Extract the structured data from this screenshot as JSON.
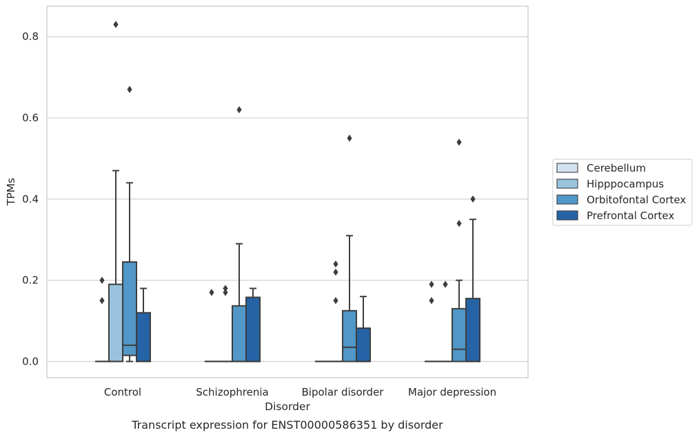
{
  "chart_data": {
    "type": "boxplot",
    "xlabel": "Disorder",
    "ylabel": "TPMs",
    "caption": "Transcript expression for ENST00000586351 by disorder",
    "ylim": [
      -0.04,
      0.875
    ],
    "yticks": [
      0.0,
      0.2,
      0.4,
      0.6,
      0.8
    ],
    "ytick_labels": [
      "0.0",
      "0.2",
      "0.4",
      "0.6",
      "0.8"
    ],
    "grid": "horizontal",
    "legend_position": "right",
    "categories": [
      "Control",
      "Schizophrenia",
      "Bipolar disorder",
      "Major depression"
    ],
    "series": [
      {
        "name": "Cerebellum",
        "color": "#d4e3f2",
        "boxes": [
          {
            "q1": 0,
            "median": 0,
            "q3": 0,
            "whisker_low": 0,
            "whisker_high": 0,
            "outliers": [
              0.15,
              0.2
            ]
          },
          {
            "q1": 0,
            "median": 0,
            "q3": 0,
            "whisker_low": 0,
            "whisker_high": 0,
            "outliers": [
              0.17
            ]
          },
          {
            "q1": 0,
            "median": 0,
            "q3": 0,
            "whisker_low": 0,
            "whisker_high": 0,
            "outliers": []
          },
          {
            "q1": 0,
            "median": 0,
            "q3": 0,
            "whisker_low": 0,
            "whisker_high": 0,
            "outliers": [
              0.15,
              0.19
            ]
          }
        ]
      },
      {
        "name": "Hipppocampus",
        "color": "#9ac3dd",
        "boxes": [
          {
            "q1": 0,
            "median": 0,
            "q3": 0.19,
            "whisker_low": 0,
            "whisker_high": 0.47,
            "outliers": [
              0.83
            ]
          },
          {
            "q1": 0,
            "median": 0,
            "q3": 0,
            "whisker_low": 0,
            "whisker_high": 0,
            "outliers": [
              0.17,
              0.18
            ]
          },
          {
            "q1": 0,
            "median": 0,
            "q3": 0,
            "whisker_low": 0,
            "whisker_high": 0,
            "outliers": [
              0.15,
              0.22,
              0.24
            ]
          },
          {
            "q1": 0,
            "median": 0,
            "q3": 0,
            "whisker_low": 0,
            "whisker_high": 0,
            "outliers": [
              0.19
            ]
          }
        ]
      },
      {
        "name": "Orbitofontal Cortex",
        "color": "#5197c7",
        "boxes": [
          {
            "q1": 0.015,
            "median": 0.04,
            "q3": 0.245,
            "whisker_low": 0,
            "whisker_high": 0.44,
            "outliers": [
              0.67
            ]
          },
          {
            "q1": 0,
            "median": 0,
            "q3": 0.137,
            "whisker_low": 0,
            "whisker_high": 0.29,
            "outliers": [
              0.62
            ]
          },
          {
            "q1": 0,
            "median": 0.035,
            "q3": 0.125,
            "whisker_low": 0,
            "whisker_high": 0.31,
            "outliers": [
              0.55
            ]
          },
          {
            "q1": 0,
            "median": 0.03,
            "q3": 0.13,
            "whisker_low": 0,
            "whisker_high": 0.2,
            "outliers": [
              0.34,
              0.54
            ]
          }
        ]
      },
      {
        "name": "Prefrontal Cortex",
        "color": "#2563a6",
        "boxes": [
          {
            "q1": 0,
            "median": 0,
            "q3": 0.12,
            "whisker_low": 0,
            "whisker_high": 0.18,
            "outliers": []
          },
          {
            "q1": 0,
            "median": 0,
            "q3": 0.158,
            "whisker_low": 0,
            "whisker_high": 0.18,
            "outliers": []
          },
          {
            "q1": 0,
            "median": 0,
            "q3": 0.082,
            "whisker_low": 0,
            "whisker_high": 0.16,
            "outliers": []
          },
          {
            "q1": 0,
            "median": 0,
            "q3": 0.155,
            "whisker_low": 0,
            "whisker_high": 0.35,
            "outliers": [
              0.4
            ]
          }
        ]
      }
    ]
  },
  "colors": {
    "edge": "#3d3d3d",
    "grid": "#cccccc",
    "frame": "#cccccc"
  }
}
